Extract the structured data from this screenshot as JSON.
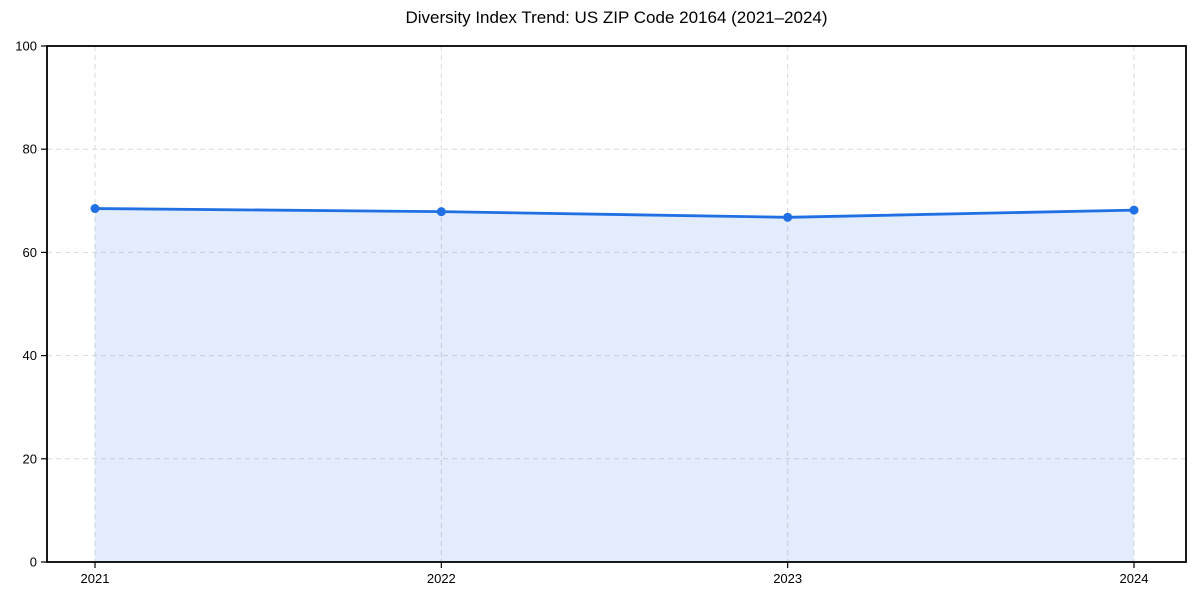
{
  "chart_data": {
    "type": "area",
    "title": "Diversity Index Trend: US ZIP Code 20164 (2021–2024)",
    "x": [
      2021,
      2022,
      2023,
      2024
    ],
    "series": [
      {
        "name": "Diversity Index",
        "values": [
          68.5,
          67.9,
          66.8,
          68.2
        ]
      }
    ],
    "xlabel": "",
    "ylabel": "",
    "ylim": [
      0,
      100
    ],
    "yticks": [
      0,
      20,
      40,
      60,
      80,
      100
    ],
    "xticks": [
      "2021",
      "2022",
      "2023",
      "2024"
    ],
    "grid": "dashed-both-axes",
    "legend": "none",
    "markers": "circle",
    "colors": {
      "line": "#2070e4",
      "marker": "#2070e4",
      "fill": "#2070e4",
      "fill_opacity": 0.13,
      "grid": "#d9d9d9",
      "spine": "#000000",
      "tick_text": "#000000",
      "background": "#ffffff"
    }
  }
}
